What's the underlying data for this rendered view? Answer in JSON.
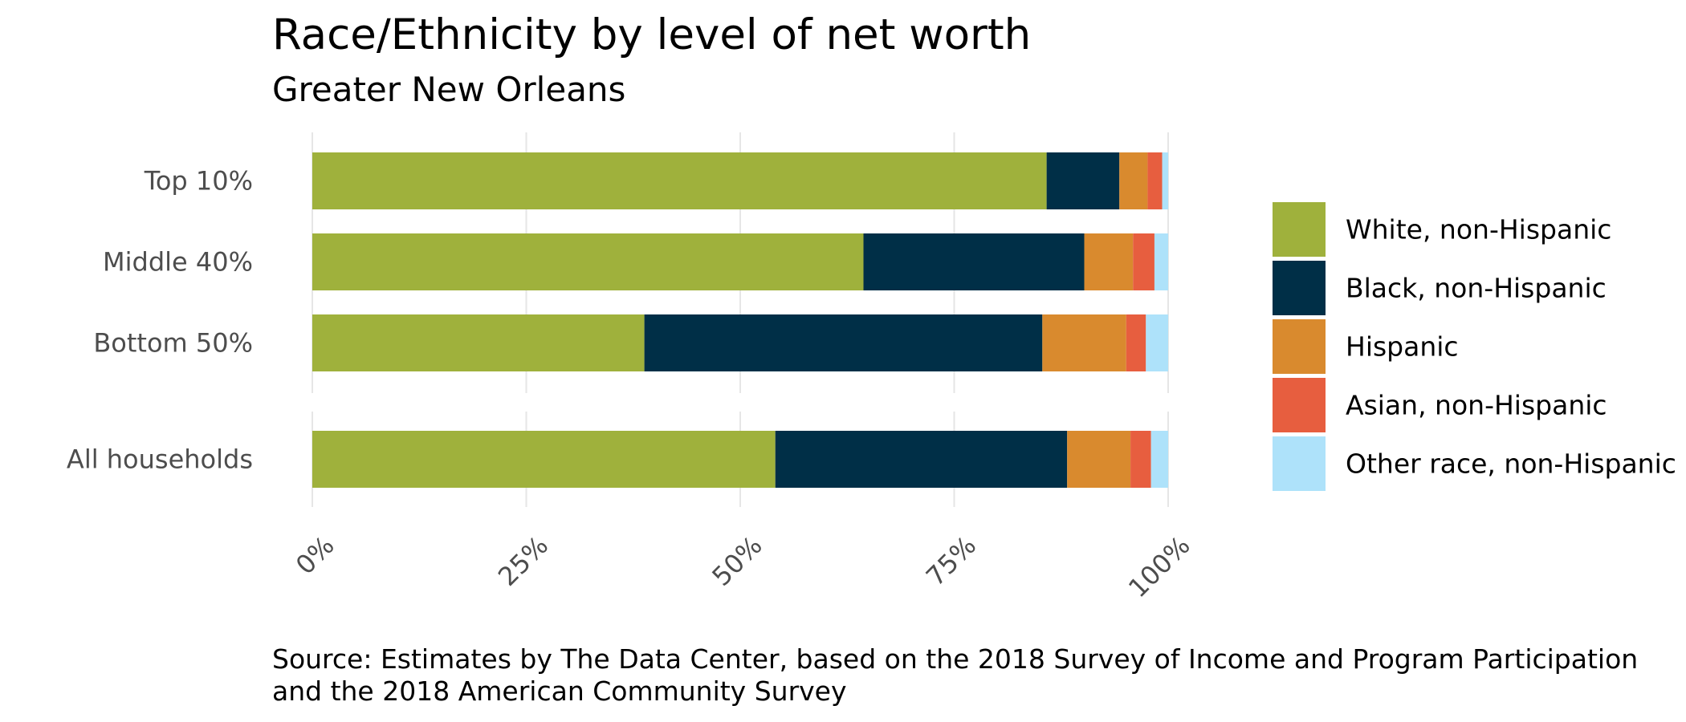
{
  "chart_data": {
    "type": "bar",
    "orientation": "horizontal",
    "stacked": true,
    "normalized_to_percent": true,
    "title": "Race/Ethnicity by level of net worth",
    "subtitle": "Greater New Orleans",
    "caption_lines": [
      "Source: Estimates by The Data Center, based on the 2018 Survey of Income and Program Participation",
      "and the 2018 American Community Survey"
    ],
    "xlabel": "",
    "ylabel": "",
    "xlim": [
      0,
      100
    ],
    "x_ticks": [
      0,
      25,
      50,
      75,
      100
    ],
    "x_tick_labels": [
      "0%",
      "25%",
      "50%",
      "75%",
      "100%"
    ],
    "grid": true,
    "legend_position": "right",
    "panels": [
      {
        "categories": [
          "Top 10%",
          "Middle 40%",
          "Bottom 50%"
        ],
        "series": [
          {
            "name": "White, non-Hispanic",
            "values": [
              85.8,
              64.4,
              38.8
            ]
          },
          {
            "name": "Black, non-Hispanic",
            "values": [
              8.5,
              25.8,
              46.5
            ]
          },
          {
            "name": "Hispanic",
            "values": [
              3.3,
              5.7,
              9.8
            ]
          },
          {
            "name": "Asian, non-Hispanic",
            "values": [
              1.7,
              2.5,
              2.3
            ]
          },
          {
            "name": "Other race, non-Hispanic",
            "values": [
              0.7,
              1.6,
              2.6
            ]
          }
        ]
      },
      {
        "categories": [
          "All households"
        ],
        "series": [
          {
            "name": "White, non-Hispanic",
            "values": [
              54.1
            ]
          },
          {
            "name": "Black, non-Hispanic",
            "values": [
              34.1
            ]
          },
          {
            "name": "Hispanic",
            "values": [
              7.4
            ]
          },
          {
            "name": "Asian, non-Hispanic",
            "values": [
              2.4
            ]
          },
          {
            "name": "Other race, non-Hispanic",
            "values": [
              2.0
            ]
          }
        ]
      }
    ],
    "legend": [
      {
        "name": "White, non-Hispanic",
        "color": "#9fb13c"
      },
      {
        "name": "Black, non-Hispanic",
        "color": "#002f47"
      },
      {
        "name": "Hispanic",
        "color": "#d98a2e"
      },
      {
        "name": "Asian, non-Hispanic",
        "color": "#e75e3f"
      },
      {
        "name": "Other race, non-Hispanic",
        "color": "#aee2fa"
      }
    ],
    "colors": {
      "gridline": "#e6e6e6",
      "tick_text": "#4d4d4d"
    }
  }
}
